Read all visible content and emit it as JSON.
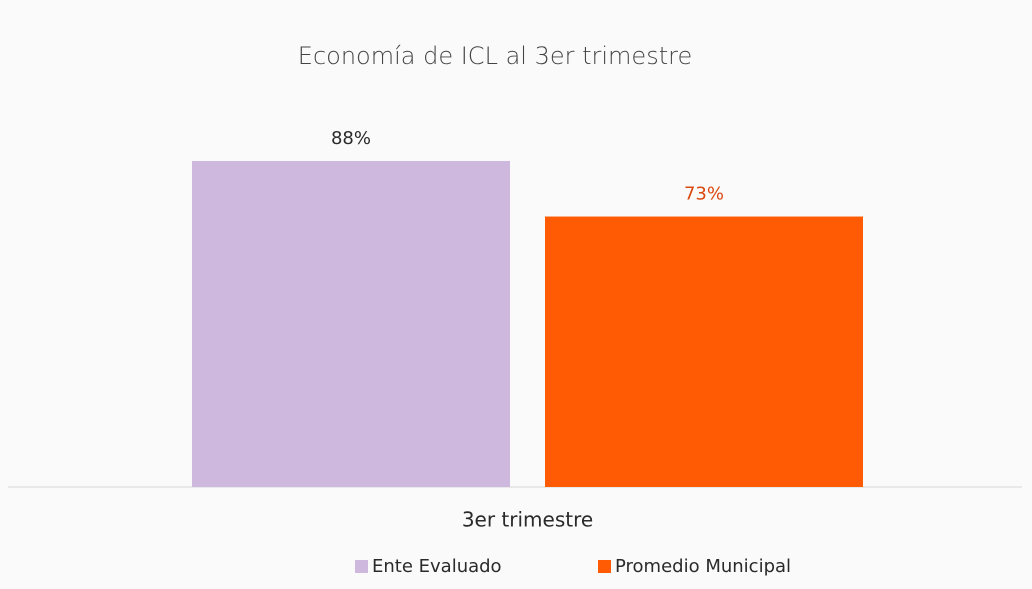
{
  "chart_data": {
    "type": "bar",
    "title": "Economía de ICL al 3er trimestre",
    "categories": [
      "3er trimestre"
    ],
    "series": [
      {
        "name": "Ente Evaluado",
        "color": "#cfb8de",
        "values": [
          88
        ],
        "value_labels": [
          "88%"
        ]
      },
      {
        "name": "Promedio Municipal",
        "color": "#ff5b05",
        "values": [
          73
        ],
        "value_labels": [
          "73%"
        ]
      }
    ],
    "legend": "bottom"
  }
}
